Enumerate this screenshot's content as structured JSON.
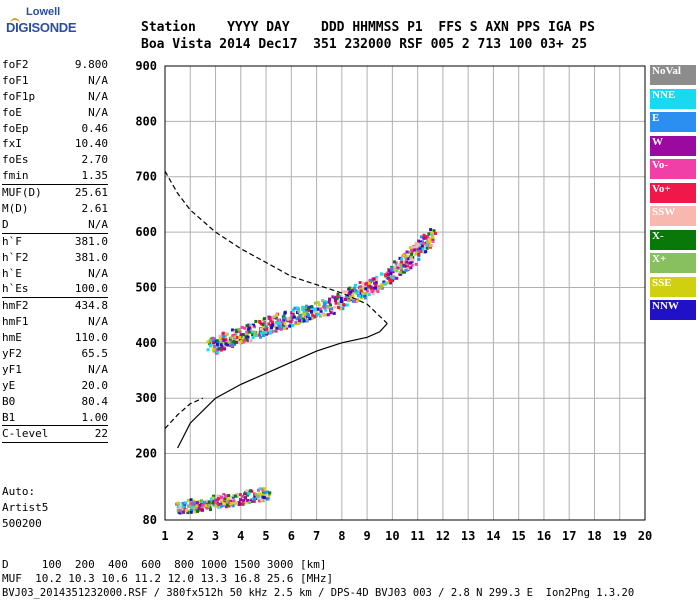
{
  "header": {
    "line1": "Station    YYYY DAY    DDD HHMMSS P1  FFS S AXN PPS IGA PS",
    "line2": "Boa Vista 2014 Dec17  351 232000 RSF 005 2 713 100 03+ 25"
  },
  "logo": {
    "top": "Lowell",
    "bottom": "DIGISONDE"
  },
  "params": [
    {
      "k": "foF2",
      "v": "9.800"
    },
    {
      "k": "foF1",
      "v": "N/A"
    },
    {
      "k": "foF1p",
      "v": "N/A"
    },
    {
      "k": "foE",
      "v": "N/A"
    },
    {
      "k": "foEp",
      "v": "0.46"
    },
    {
      "k": "fxI",
      "v": "10.40"
    },
    {
      "k": "foEs",
      "v": "2.70"
    },
    {
      "k": "fmin",
      "v": "1.35"
    },
    {
      "k": "MUF(D)",
      "v": "25.61",
      "sep": true
    },
    {
      "k": "M(D)",
      "v": "2.61"
    },
    {
      "k": "D",
      "v": "N/A"
    },
    {
      "k": "h`F",
      "v": "381.0",
      "sep": true
    },
    {
      "k": "h`F2",
      "v": "381.0"
    },
    {
      "k": "h`E",
      "v": "N/A"
    },
    {
      "k": "h`Es",
      "v": "100.0"
    },
    {
      "k": "hmF2",
      "v": "434.8",
      "sep": true
    },
    {
      "k": "hmF1",
      "v": "N/A"
    },
    {
      "k": "hmE",
      "v": "110.0"
    },
    {
      "k": "yF2",
      "v": "65.5"
    },
    {
      "k": "yF1",
      "v": "N/A"
    },
    {
      "k": "yE",
      "v": "20.0"
    },
    {
      "k": "B0",
      "v": "80.4"
    },
    {
      "k": "B1",
      "v": "1.00"
    },
    {
      "k": "C-level",
      "v": "22",
      "sep": true
    }
  ],
  "auto": [
    "Auto:",
    "Artist5",
    "500200"
  ],
  "legend": [
    {
      "label": "NoVal",
      "color": "#8c8c8c"
    },
    {
      "label": "NNE",
      "color": "#19d8f0"
    },
    {
      "label": "E",
      "color": "#2a8ff0"
    },
    {
      "label": "W",
      "color": "#9a0aa0"
    },
    {
      "label": "Vo-",
      "color": "#f040a8"
    },
    {
      "label": "Vo+",
      "color": "#f01848"
    },
    {
      "label": "SSW",
      "color": "#f8b8b0"
    },
    {
      "label": "X-",
      "color": "#087808"
    },
    {
      "label": "X+",
      "color": "#88c060"
    },
    {
      "label": "SSE",
      "color": "#d0d010"
    },
    {
      "label": "NNW",
      "color": "#2010c8"
    }
  ],
  "footer": {
    "dist": "D     100  200  400  600  800 1000 1500 3000 [km]",
    "muf": "MUF  10.2 10.3 10.6 11.2 12.0 13.3 16.8 25.6 [MHz]",
    "info": "BVJ03_2014351232000.RSF / 380fx512h 50 kHz 2.5 km / DPS-4D BVJ03 003 / 2.8 N 299.3 E  Ion2Png 1.3.20"
  },
  "chart_data": {
    "type": "scatter",
    "x": [
      1,
      2,
      3,
      4,
      5,
      6,
      7,
      8,
      9,
      10,
      11,
      12,
      13,
      14,
      15,
      16,
      17,
      18,
      19,
      20
    ],
    "xlim": [
      1,
      20
    ],
    "ylim": [
      80,
      900
    ],
    "yticks": [
      80,
      200,
      300,
      400,
      500,
      600,
      700,
      800,
      900
    ],
    "grid": true,
    "series": [
      {
        "name": "virtual-height trace F2 (approx)",
        "x": [
          2.7,
          3.5,
          4.5,
          5.5,
          6.5,
          7.5,
          8.5,
          9.5,
          10.3,
          11,
          11.5
        ],
        "y": [
          395,
          410,
          425,
          440,
          455,
          470,
          490,
          515,
          540,
          570,
          600
        ]
      },
      {
        "name": "Es trace (approx)",
        "x": [
          1.5,
          2,
          2.5,
          3,
          3.5,
          4,
          4.5,
          5
        ],
        "y": [
          105,
          108,
          110,
          115,
          118,
          122,
          126,
          130
        ]
      },
      {
        "name": "true-height profile (solid)",
        "x": [
          1.5,
          2,
          3,
          4,
          5,
          6,
          7,
          8,
          9,
          9.5,
          9.8
        ],
        "y": [
          210,
          255,
          300,
          325,
          345,
          365,
          385,
          400,
          410,
          420,
          435
        ]
      },
      {
        "name": "profile extrapolation (dashed)",
        "x": [
          1,
          1.5,
          2,
          3,
          4,
          5,
          6,
          7,
          8,
          9,
          9.8
        ],
        "y": [
          710,
          670,
          640,
          600,
          570,
          545,
          520,
          505,
          490,
          470,
          435
        ]
      },
      {
        "name": "lower extrapolation (dashed)",
        "x": [
          1,
          1.5,
          2,
          2.5
        ],
        "y": [
          245,
          270,
          290,
          300
        ]
      }
    ]
  }
}
